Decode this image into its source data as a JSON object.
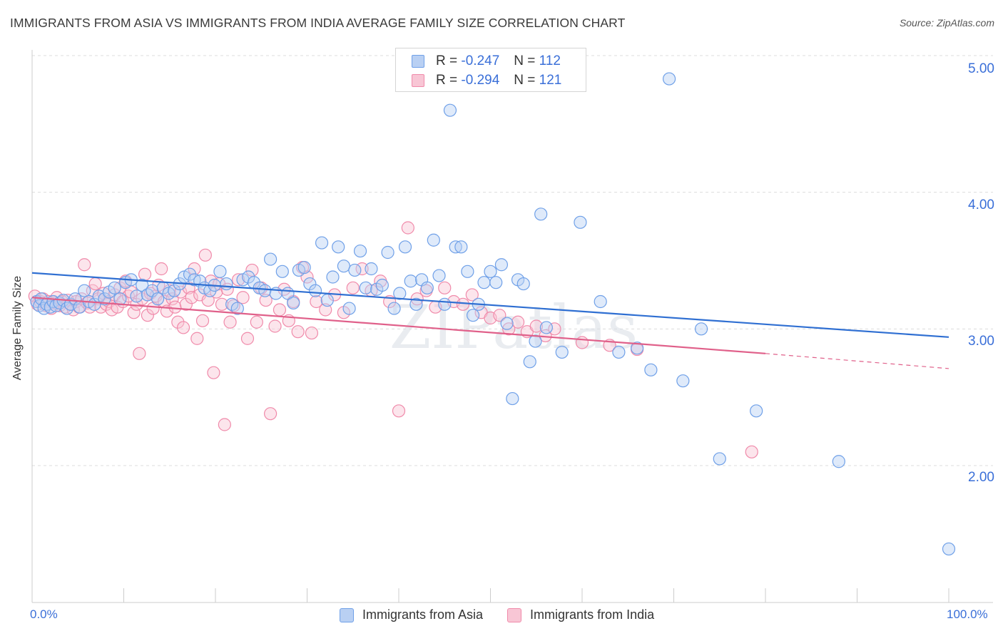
{
  "title": "IMMIGRANTS FROM ASIA VS IMMIGRANTS FROM INDIA AVERAGE FAMILY SIZE CORRELATION CHART",
  "source": "Source: ZipAtlas.com",
  "watermark": "ZIPatlas",
  "legend": {
    "r_label": "R =",
    "n_label": "N =",
    "rows": [
      {
        "r": "-0.247",
        "n": "112",
        "color": "#6fa0e8"
      },
      {
        "r": "-0.294",
        "n": "121",
        "color": "#f08aaa"
      }
    ]
  },
  "chart_data": {
    "type": "scatter",
    "title": "IMMIGRANTS FROM ASIA VS IMMIGRANTS FROM INDIA AVERAGE FAMILY SIZE CORRELATION CHART",
    "xlabel": "",
    "ylabel": "Average Family Size",
    "xlim": [
      0,
      100
    ],
    "ylim": [
      1.0,
      5.1
    ],
    "x_tick_labels": [
      "0.0%",
      "100.0%"
    ],
    "y_ticks": [
      2.0,
      3.0,
      4.0,
      5.0
    ],
    "y_tick_labels": [
      "2.00",
      "3.00",
      "4.00",
      "5.00"
    ],
    "grid": "horizontal dashed",
    "legend_position": "top-center",
    "series": [
      {
        "name": "Immigrants from Asia",
        "color": "#6fa0e8",
        "trend": {
          "x0": 0,
          "y0": 3.41,
          "x1": 100,
          "y1": 2.94
        },
        "points": [
          [
            0.5,
            3.2
          ],
          [
            0.8,
            3.17
          ],
          [
            1.0,
            3.22
          ],
          [
            1.3,
            3.15
          ],
          [
            1.6,
            3.18
          ],
          [
            2.0,
            3.16
          ],
          [
            2.3,
            3.2
          ],
          [
            2.6,
            3.17
          ],
          [
            3.0,
            3.19
          ],
          [
            3.4,
            3.21
          ],
          [
            3.8,
            3.15
          ],
          [
            4.2,
            3.18
          ],
          [
            4.7,
            3.22
          ],
          [
            5.2,
            3.16
          ],
          [
            5.7,
            3.28
          ],
          [
            6.2,
            3.2
          ],
          [
            6.8,
            3.18
          ],
          [
            7.3,
            3.24
          ],
          [
            7.9,
            3.22
          ],
          [
            8.4,
            3.27
          ],
          [
            9.0,
            3.3
          ],
          [
            9.6,
            3.22
          ],
          [
            10.2,
            3.34
          ],
          [
            10.8,
            3.36
          ],
          [
            11.4,
            3.24
          ],
          [
            12.0,
            3.32
          ],
          [
            12.6,
            3.25
          ],
          [
            13.1,
            3.28
          ],
          [
            13.7,
            3.22
          ],
          [
            14.3,
            3.3
          ],
          [
            14.9,
            3.26
          ],
          [
            15.5,
            3.28
          ],
          [
            16.1,
            3.33
          ],
          [
            16.6,
            3.38
          ],
          [
            17.2,
            3.4
          ],
          [
            17.7,
            3.36
          ],
          [
            18.3,
            3.35
          ],
          [
            18.8,
            3.3
          ],
          [
            19.4,
            3.28
          ],
          [
            19.9,
            3.32
          ],
          [
            20.5,
            3.42
          ],
          [
            21.2,
            3.33
          ],
          [
            21.8,
            3.18
          ],
          [
            22.4,
            3.15
          ],
          [
            23.0,
            3.36
          ],
          [
            23.6,
            3.38
          ],
          [
            24.2,
            3.34
          ],
          [
            24.8,
            3.3
          ],
          [
            25.4,
            3.28
          ],
          [
            26.0,
            3.51
          ],
          [
            26.6,
            3.26
          ],
          [
            27.3,
            3.42
          ],
          [
            27.9,
            3.26
          ],
          [
            28.5,
            3.19
          ],
          [
            29.1,
            3.43
          ],
          [
            29.7,
            3.45
          ],
          [
            30.3,
            3.33
          ],
          [
            30.9,
            3.28
          ],
          [
            31.6,
            3.63
          ],
          [
            32.2,
            3.21
          ],
          [
            32.8,
            3.38
          ],
          [
            33.4,
            3.6
          ],
          [
            34.0,
            3.46
          ],
          [
            34.6,
            3.15
          ],
          [
            35.2,
            3.43
          ],
          [
            35.8,
            3.57
          ],
          [
            36.4,
            3.3
          ],
          [
            37.0,
            3.44
          ],
          [
            37.6,
            3.29
          ],
          [
            38.2,
            3.32
          ],
          [
            38.8,
            3.56
          ],
          [
            39.5,
            3.15
          ],
          [
            40.1,
            3.26
          ],
          [
            40.7,
            3.6
          ],
          [
            41.3,
            3.35
          ],
          [
            41.9,
            3.18
          ],
          [
            42.5,
            3.36
          ],
          [
            43.1,
            3.3
          ],
          [
            43.8,
            3.65
          ],
          [
            44.4,
            3.39
          ],
          [
            45.0,
            3.18
          ],
          [
            45.6,
            4.6
          ],
          [
            46.2,
            3.6
          ],
          [
            46.8,
            3.6
          ],
          [
            47.5,
            3.42
          ],
          [
            48.1,
            3.1
          ],
          [
            48.7,
            3.18
          ],
          [
            49.3,
            3.34
          ],
          [
            50.0,
            3.42
          ],
          [
            50.6,
            3.34
          ],
          [
            51.2,
            3.47
          ],
          [
            51.8,
            3.04
          ],
          [
            52.4,
            2.49
          ],
          [
            53.0,
            3.36
          ],
          [
            53.6,
            3.33
          ],
          [
            54.3,
            2.76
          ],
          [
            54.9,
            2.91
          ],
          [
            55.5,
            3.84
          ],
          [
            56.1,
            3.01
          ],
          [
            57.8,
            2.83
          ],
          [
            59.8,
            3.78
          ],
          [
            62.0,
            3.2
          ],
          [
            64.0,
            2.83
          ],
          [
            66.0,
            2.86
          ],
          [
            67.5,
            2.7
          ],
          [
            69.5,
            4.83
          ],
          [
            71.0,
            2.62
          ],
          [
            73.0,
            3.0
          ],
          [
            75.0,
            2.05
          ],
          [
            79.0,
            2.4
          ],
          [
            88.0,
            2.03
          ],
          [
            100.0,
            1.39
          ]
        ]
      },
      {
        "name": "Immigrants from India",
        "color": "#f08aaa",
        "trend": {
          "x0": 0,
          "y0": 3.23,
          "x1": 80,
          "y1": 2.82
        },
        "trend_dashed": {
          "x0": 80,
          "y0": 2.82,
          "x1": 100,
          "y1": 2.71
        },
        "points": [
          [
            0.3,
            3.24
          ],
          [
            0.6,
            3.18
          ],
          [
            0.9,
            3.2
          ],
          [
            1.2,
            3.22
          ],
          [
            1.5,
            3.17
          ],
          [
            1.8,
            3.2
          ],
          [
            2.1,
            3.15
          ],
          [
            2.4,
            3.19
          ],
          [
            2.7,
            3.23
          ],
          [
            3.0,
            3.17
          ],
          [
            3.3,
            3.2
          ],
          [
            3.6,
            3.16
          ],
          [
            3.9,
            3.21
          ],
          [
            4.2,
            3.18
          ],
          [
            4.5,
            3.14
          ],
          [
            4.8,
            3.2
          ],
          [
            5.1,
            3.16
          ],
          [
            5.4,
            3.22
          ],
          [
            5.7,
            3.47
          ],
          [
            6.0,
            3.19
          ],
          [
            6.3,
            3.16
          ],
          [
            6.6,
            3.28
          ],
          [
            6.9,
            3.33
          ],
          [
            7.2,
            3.22
          ],
          [
            7.5,
            3.16
          ],
          [
            7.8,
            3.26
          ],
          [
            8.1,
            3.18
          ],
          [
            8.4,
            3.2
          ],
          [
            8.7,
            3.14
          ],
          [
            9.0,
            3.25
          ],
          [
            9.3,
            3.16
          ],
          [
            9.6,
            3.3
          ],
          [
            9.9,
            3.2
          ],
          [
            10.2,
            3.35
          ],
          [
            10.5,
            3.24
          ],
          [
            10.8,
            3.27
          ],
          [
            11.1,
            3.12
          ],
          [
            11.4,
            3.18
          ],
          [
            11.7,
            2.82
          ],
          [
            12.0,
            3.22
          ],
          [
            12.3,
            3.4
          ],
          [
            12.6,
            3.1
          ],
          [
            12.9,
            3.26
          ],
          [
            13.2,
            3.15
          ],
          [
            13.5,
            3.24
          ],
          [
            13.8,
            3.32
          ],
          [
            14.1,
            3.44
          ],
          [
            14.4,
            3.2
          ],
          [
            14.7,
            3.13
          ],
          [
            15.0,
            3.28
          ],
          [
            15.3,
            3.22
          ],
          [
            15.6,
            3.16
          ],
          [
            15.9,
            3.05
          ],
          [
            16.2,
            3.27
          ],
          [
            16.5,
            3.01
          ],
          [
            16.8,
            3.18
          ],
          [
            17.1,
            3.3
          ],
          [
            17.4,
            3.23
          ],
          [
            17.7,
            3.44
          ],
          [
            18.0,
            2.93
          ],
          [
            18.3,
            3.25
          ],
          [
            18.6,
            3.06
          ],
          [
            18.9,
            3.54
          ],
          [
            19.2,
            3.21
          ],
          [
            19.5,
            3.35
          ],
          [
            19.8,
            2.68
          ],
          [
            20.1,
            3.27
          ],
          [
            20.4,
            3.33
          ],
          [
            20.7,
            3.18
          ],
          [
            21.0,
            2.3
          ],
          [
            21.3,
            3.29
          ],
          [
            21.6,
            3.05
          ],
          [
            22.0,
            3.17
          ],
          [
            22.5,
            3.36
          ],
          [
            23.0,
            3.23
          ],
          [
            23.5,
            2.93
          ],
          [
            24.0,
            3.43
          ],
          [
            24.5,
            3.05
          ],
          [
            25.0,
            3.3
          ],
          [
            25.5,
            3.21
          ],
          [
            26.0,
            2.38
          ],
          [
            26.5,
            3.02
          ],
          [
            27.0,
            3.14
          ],
          [
            27.5,
            3.29
          ],
          [
            28.0,
            3.06
          ],
          [
            28.5,
            3.2
          ],
          [
            29.0,
            2.98
          ],
          [
            29.5,
            3.45
          ],
          [
            30.0,
            3.38
          ],
          [
            30.5,
            2.97
          ],
          [
            31.0,
            3.2
          ],
          [
            32.0,
            3.14
          ],
          [
            33.0,
            3.25
          ],
          [
            34.0,
            3.12
          ],
          [
            35.0,
            3.3
          ],
          [
            36.0,
            3.44
          ],
          [
            37.0,
            3.28
          ],
          [
            38.0,
            3.35
          ],
          [
            39.0,
            3.2
          ],
          [
            40.0,
            2.4
          ],
          [
            41.0,
            3.74
          ],
          [
            42.0,
            3.22
          ],
          [
            43.0,
            3.28
          ],
          [
            44.0,
            3.16
          ],
          [
            45.0,
            3.3
          ],
          [
            46.0,
            3.2
          ],
          [
            47.0,
            3.18
          ],
          [
            48.0,
            3.25
          ],
          [
            49.0,
            3.12
          ],
          [
            50.0,
            3.08
          ],
          [
            51.0,
            3.1
          ],
          [
            52.0,
            3.0
          ],
          [
            53.0,
            3.05
          ],
          [
            54.0,
            2.98
          ],
          [
            55.0,
            3.02
          ],
          [
            56.0,
            2.95
          ],
          [
            57.0,
            3.0
          ],
          [
            60.0,
            2.9
          ],
          [
            63.0,
            2.88
          ],
          [
            66.0,
            2.85
          ],
          [
            78.5,
            2.1
          ]
        ]
      }
    ]
  },
  "bottom_legend": [
    {
      "label": "Immigrants from Asia",
      "color": "#6fa0e8"
    },
    {
      "label": "Immigrants from India",
      "color": "#f08aaa"
    }
  ]
}
